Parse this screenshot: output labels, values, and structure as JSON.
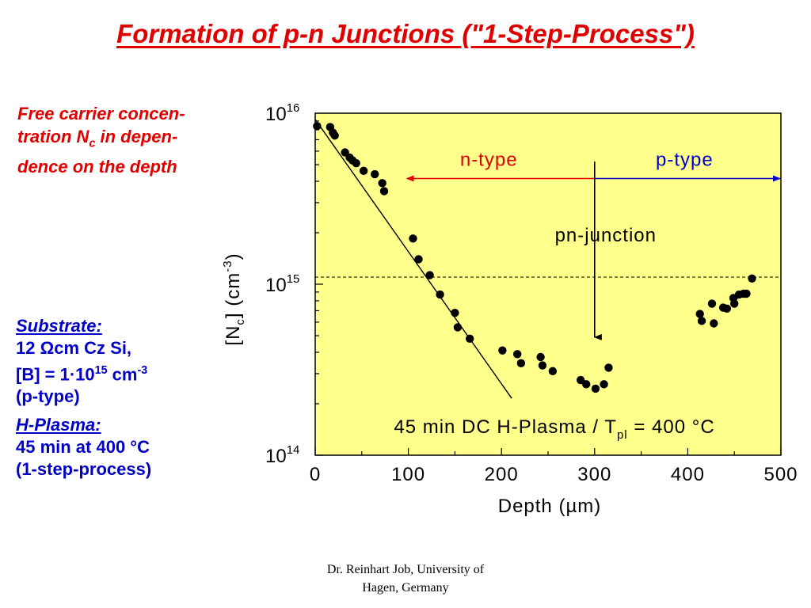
{
  "slide": {
    "title": "Formation of p-n Junctions (\"1-Step-Process\")",
    "note_lines": [
      "Free carrier concen-",
      "tration N",
      "c",
      " in depen-",
      "dence on the depth"
    ],
    "substrate": {
      "heading": "Substrate:",
      "line1_a": "12 ",
      "line1_sym": "Ω",
      "line1_b": "cm Cz Si,",
      "line2_a": "[B] = 1·10",
      "line2_exp": "15",
      "line2_b": " cm",
      "line2_exp2": "-3",
      "line3": "(p-type)"
    },
    "plasma": {
      "heading": "H-Plasma:",
      "line1": "45 min at 400 °C",
      "line2": "(1-step-process)"
    },
    "footer_line1": "Dr. Reinhart Job, University of",
    "footer_line2": "Hagen, Germany"
  },
  "chart_data": {
    "type": "scatter",
    "xlim": [
      0,
      500
    ],
    "ylim": [
      100000000000000.0,
      1e+16
    ],
    "y_scale": "log",
    "x_ticks": [
      "0",
      "100",
      "200",
      "300",
      "400",
      "500"
    ],
    "y_ticks": [
      {
        "base": "10",
        "exp": "16"
      },
      {
        "base": "10",
        "exp": "15"
      },
      {
        "base": "10",
        "exp": "14"
      }
    ],
    "xlabel": "Depth (µm)",
    "ylabel": {
      "a": "[N",
      "sub": "c",
      "b": "] (cm",
      "sup": "-3",
      "c": ")"
    },
    "plot_background": "#ffff8c",
    "points": [
      [
        2,
        8400000000000000.0
      ],
      [
        16,
        8300000000000000.0
      ],
      [
        19,
        7700000000000000.0
      ],
      [
        21,
        7400000000000000.0
      ],
      [
        32,
        5900000000000000.0
      ],
      [
        37,
        5500000000000000.0
      ],
      [
        40,
        5300000000000000.0
      ],
      [
        44,
        5100000000000000.0
      ],
      [
        52,
        4600000000000000.0
      ],
      [
        64,
        4400000000000000.0
      ],
      [
        72,
        3900000000000000.0
      ],
      [
        74,
        3500000000000000.0
      ],
      [
        105,
        1850000000000000.0
      ],
      [
        111,
        1400000000000000.0
      ],
      [
        123,
        1130000000000000.0
      ],
      [
        134,
        870000000000000.0
      ],
      [
        150,
        680000000000000.0
      ],
      [
        153,
        560000000000000.0
      ],
      [
        166,
        480000000000000.0
      ],
      [
        201,
        410000000000000.0
      ],
      [
        217,
        390000000000000.0
      ],
      [
        221,
        345000000000000.0
      ],
      [
        242,
        375000000000000.0
      ],
      [
        244,
        335000000000000.0
      ],
      [
        255,
        310000000000000.0
      ],
      [
        285,
        275000000000000.0
      ],
      [
        291,
        260000000000000.0
      ],
      [
        301,
        245000000000000.0
      ],
      [
        310,
        260000000000000.0
      ],
      [
        315,
        325000000000000.0
      ],
      [
        413,
        670000000000000.0
      ],
      [
        415,
        610000000000000.0
      ],
      [
        426,
        770000000000000.0
      ],
      [
        428,
        590000000000000.0
      ],
      [
        438,
        730000000000000.0
      ],
      [
        442,
        720000000000000.0
      ],
      [
        449,
        830000000000000.0
      ],
      [
        450,
        770000000000000.0
      ],
      [
        455,
        870000000000000.0
      ],
      [
        460,
        880000000000000.0
      ],
      [
        463,
        880000000000000.0
      ],
      [
        469,
        1080000000000000.0
      ]
    ],
    "fit_line": [
      [
        0,
        9200000000000000.0
      ],
      [
        211,
        215000000000000.0
      ]
    ],
    "reference_line": {
      "y": 1100000000000000.0,
      "style": "dashed"
    },
    "annotations": {
      "n_type": {
        "text": "n-type",
        "x_from": 300,
        "x_to": 100,
        "y": 4150000000000000.0,
        "color": "#e00000"
      },
      "p_type": {
        "text": "p-type",
        "x_from": 300,
        "x_to": 500,
        "y": 4150000000000000.0,
        "color": "#0000c8"
      },
      "junction": {
        "text": "pn-junction",
        "x": 300,
        "y_from": 5100000000000000.0,
        "y_to": 490000000000000.0
      },
      "condition": {
        "a": "45 min DC H-Plasma / T",
        "sub": "pl",
        "b": " = 400 °C"
      }
    }
  }
}
